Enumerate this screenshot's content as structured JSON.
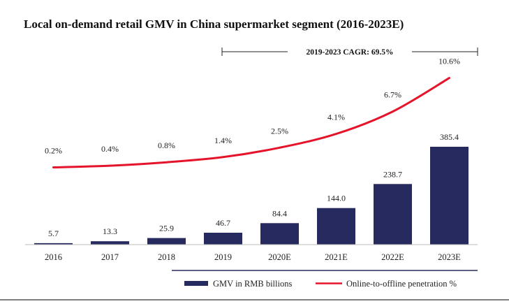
{
  "chart_data": {
    "type": "bar",
    "title": "Local on-demand retail GMV in China supermarket segment (2016-2023E)",
    "categories": [
      "2016",
      "2017",
      "2018",
      "2019",
      "2020E",
      "2021E",
      "2022E",
      "2023E"
    ],
    "series": [
      {
        "name": "GMV in RMB billions",
        "type": "bar",
        "color": "#262a5e",
        "values": [
          5.7,
          13.3,
          25.9,
          46.7,
          84.4,
          144.0,
          238.7,
          385.4
        ],
        "labels": [
          "5.7",
          "13.3",
          "25.9",
          "46.7",
          "84.4",
          "144.0",
          "238.7",
          "385.4"
        ]
      },
      {
        "name": "Online-to-offline penetration %",
        "type": "line",
        "color": "#e5142a",
        "values": [
          0.2,
          0.4,
          0.8,
          1.4,
          2.5,
          4.1,
          6.7,
          10.6
        ],
        "labels": [
          "0.2%",
          "0.4%",
          "0.8%",
          "1.4%",
          "2.5%",
          "4.1%",
          "6.7%",
          "10.6%"
        ]
      }
    ],
    "annotation": "2019-2023 CAGR: 69.5%",
    "legend_position": "bottom-right",
    "grid": false
  }
}
